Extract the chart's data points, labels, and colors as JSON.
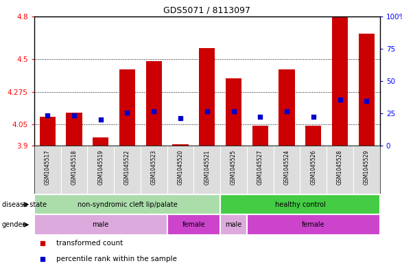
{
  "title": "GDS5071 / 8113097",
  "samples": [
    "GSM1045517",
    "GSM1045518",
    "GSM1045519",
    "GSM1045522",
    "GSM1045523",
    "GSM1045520",
    "GSM1045521",
    "GSM1045525",
    "GSM1045527",
    "GSM1045524",
    "GSM1045526",
    "GSM1045528",
    "GSM1045529"
  ],
  "bar_values": [
    4.1,
    4.13,
    3.96,
    4.43,
    4.49,
    3.91,
    4.58,
    4.37,
    4.04,
    4.43,
    4.04,
    4.8,
    4.68
  ],
  "blue_values": [
    4.11,
    4.11,
    4.08,
    4.13,
    4.14,
    4.09,
    4.14,
    4.14,
    4.1,
    4.14,
    4.1,
    4.22,
    4.21
  ],
  "y_min": 3.9,
  "y_max": 4.8,
  "y_ticks_left": [
    3.9,
    4.05,
    4.275,
    4.5,
    4.8
  ],
  "y_ticks_right": [
    0,
    25,
    50,
    75,
    100
  ],
  "bar_color": "#cc0000",
  "blue_color": "#0000cc",
  "plot_bg_color": "#ffffff",
  "disease_state_groups": [
    {
      "label": "non-syndromic cleft lip/palate",
      "start": 0,
      "end": 6,
      "color": "#aaddaa"
    },
    {
      "label": "healthy control",
      "start": 7,
      "end": 12,
      "color": "#44cc44"
    }
  ],
  "gender_groups": [
    {
      "label": "male",
      "start": 0,
      "end": 4,
      "color": "#ddaadd"
    },
    {
      "label": "female",
      "start": 5,
      "end": 6,
      "color": "#cc44cc"
    },
    {
      "label": "male",
      "start": 7,
      "end": 7,
      "color": "#ddaadd"
    },
    {
      "label": "female",
      "start": 8,
      "end": 12,
      "color": "#cc44cc"
    }
  ],
  "disease_label": "disease state",
  "gender_label": "gender",
  "legend_items": [
    {
      "label": "transformed count",
      "color": "#cc0000"
    },
    {
      "label": "percentile rank within the sample",
      "color": "#0000cc"
    }
  ]
}
